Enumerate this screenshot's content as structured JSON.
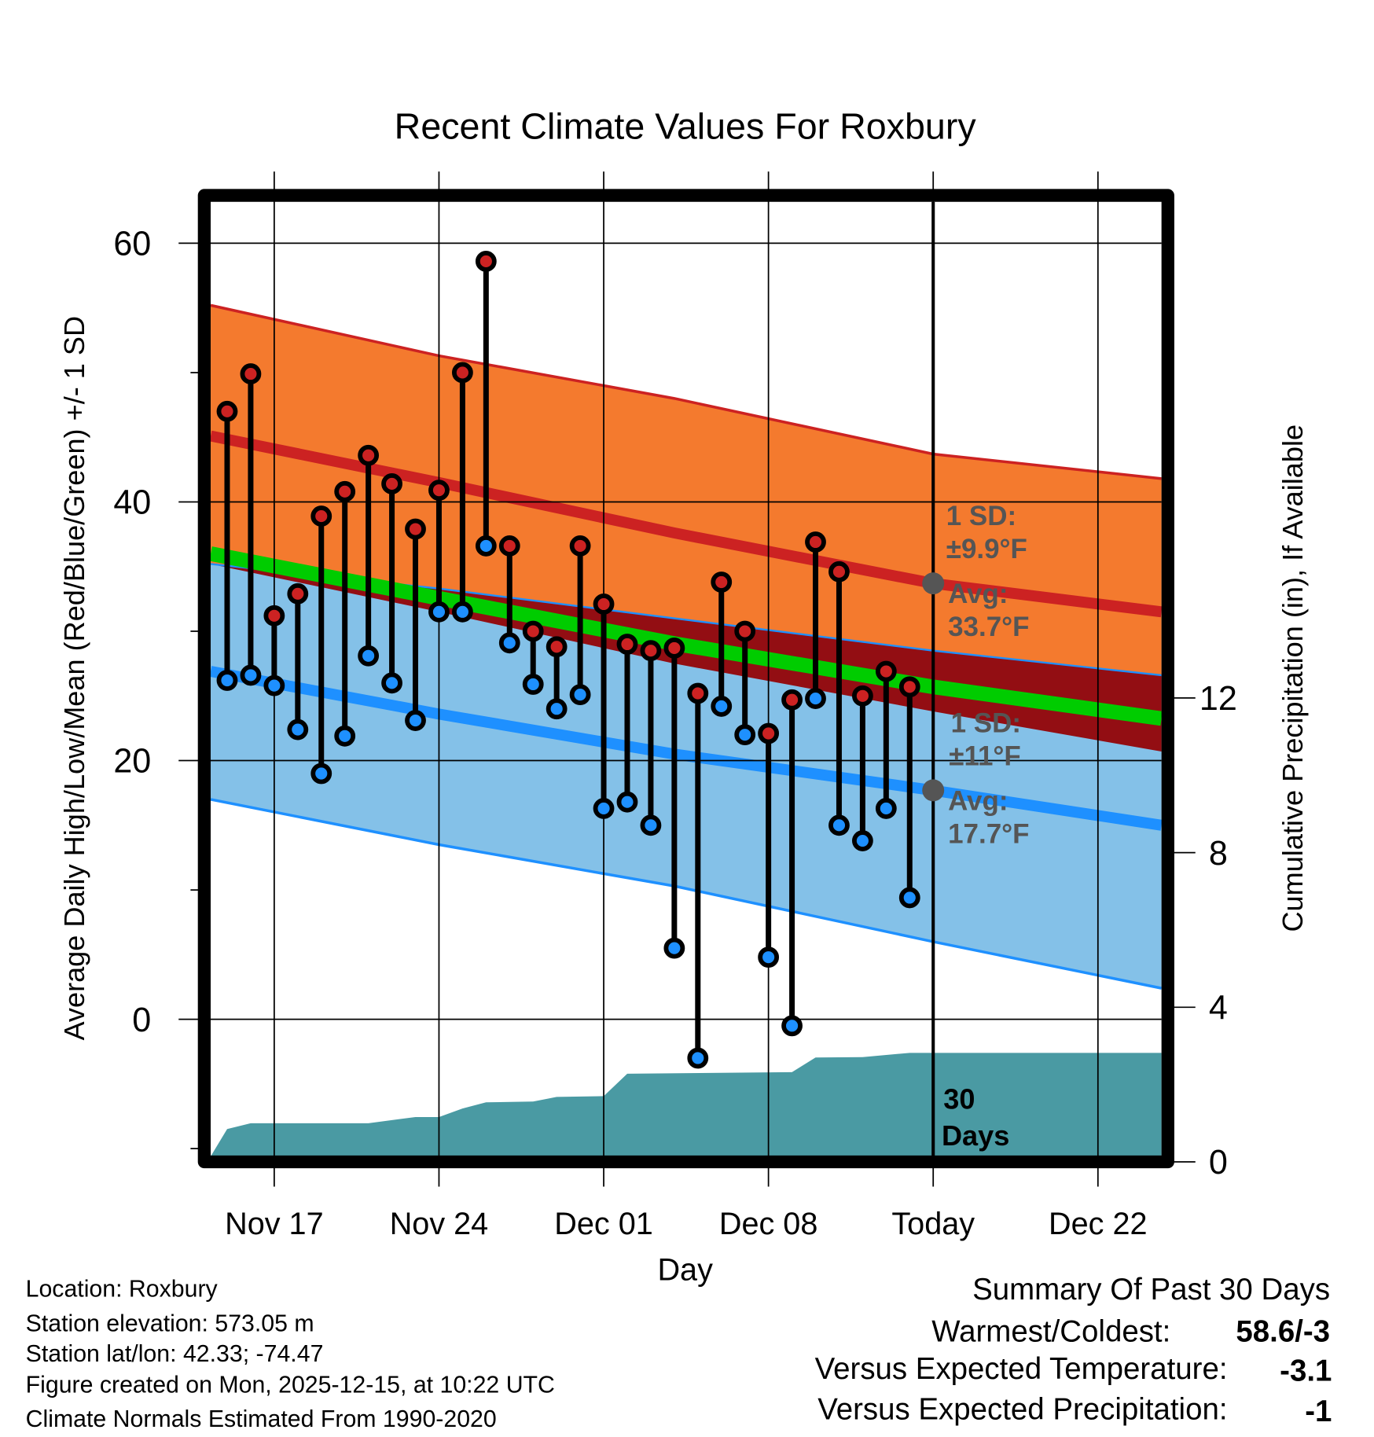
{
  "chart_data": {
    "type": "line",
    "title": "Recent Climate Values For Roxbury",
    "xlabel": "Day",
    "ylabel": "Average Daily High/Low/Mean (Red/Blue/Green) +/- 1 SD",
    "y2label": "Cumulative Precipitation (in), If Available",
    "ylim": [
      -10.6,
      63.2
    ],
    "y2lim": [
      0,
      17.5
    ],
    "xlim_days_from_nov17": [
      -2.7,
      37.7
    ],
    "x_ticks": [
      {
        "day": 0,
        "label": "Nov 17"
      },
      {
        "day": 7,
        "label": "Nov 24"
      },
      {
        "day": 14,
        "label": "Dec 01"
      },
      {
        "day": 21,
        "label": "Dec 08"
      },
      {
        "day": 28,
        "label": "Today"
      },
      {
        "day": 35,
        "label": "Dec 22"
      }
    ],
    "y_ticks": [
      0,
      20,
      40,
      60
    ],
    "y_minor_ticks": [
      -10,
      10,
      30,
      50
    ],
    "y2_ticks": [
      0,
      4,
      8,
      12
    ],
    "grid": true,
    "today_day": 28,
    "observed": {
      "days_from_nov17": [
        -2,
        -1,
        0,
        1,
        2,
        3,
        4,
        5,
        6,
        7,
        8,
        9,
        10,
        11,
        12,
        13,
        14,
        15,
        16,
        17,
        18,
        19,
        20,
        21,
        22,
        23,
        24,
        25,
        26,
        27
      ],
      "high": [
        47.0,
        49.9,
        31.2,
        32.9,
        38.9,
        40.8,
        43.6,
        41.4,
        37.9,
        40.9,
        50.0,
        58.6,
        36.6,
        30.0,
        28.8,
        36.6,
        32.1,
        29.0,
        28.5,
        28.7,
        25.2,
        33.8,
        30.0,
        22.1,
        24.7,
        36.9,
        34.6,
        25.0,
        26.9,
        25.7
      ],
      "low": [
        26.2,
        26.6,
        25.8,
        22.4,
        19.0,
        21.9,
        28.1,
        26.0,
        23.1,
        31.5,
        31.5,
        36.6,
        29.1,
        25.9,
        24.0,
        25.1,
        16.3,
        16.8,
        15.0,
        5.5,
        -3.0,
        24.2,
        22.0,
        4.8,
        -0.5,
        24.8,
        15.0,
        13.8,
        16.3,
        9.4
      ]
    },
    "normals": {
      "days_from_nov17": [
        -2.7,
        7,
        17,
        28,
        37.7
      ],
      "high_upper": [
        55.2,
        51.3,
        48.0,
        43.7,
        41.8
      ],
      "high_mean": [
        45.1,
        41.5,
        37.6,
        33.7,
        31.5
      ],
      "high_lower": [
        35.2,
        31.5,
        27.5,
        23.8,
        20.7
      ],
      "low_upper": [
        35.2,
        33.3,
        31.0,
        28.5,
        26.6
      ],
      "low_mean": [
        26.9,
        23.6,
        20.5,
        17.7,
        15.0
      ],
      "low_lower": [
        17.0,
        13.5,
        10.3,
        6.0,
        2.4
      ]
    },
    "precip": {
      "days_from_nov17": [
        -2.7,
        -2,
        -1,
        4,
        6,
        7,
        8,
        9,
        11,
        12,
        14,
        15,
        22,
        23,
        25,
        27,
        37.7
      ],
      "cumulative_in": [
        0,
        0.85,
        1.0,
        1.0,
        1.16,
        1.16,
        1.38,
        1.54,
        1.56,
        1.68,
        1.7,
        2.28,
        2.32,
        2.7,
        2.71,
        2.82,
        2.82
      ]
    },
    "annotations": {
      "high_sd_label": "1 SD:",
      "high_sd_value": "±9.9°F",
      "high_avg_label": "Avg:",
      "high_avg_value": "33.7°F",
      "high_avg": 33.7,
      "low_sd_label": "1 SD:",
      "low_sd_value": "±11°F",
      "low_avg_label": "Avg:",
      "low_avg_value": "17.7°F",
      "low_avg": 17.7,
      "period_line1": "30",
      "period_line2": "Days"
    },
    "colors": {
      "high_band": "#f47a2e",
      "high_line": "#cc2222",
      "overlap": "#930e13",
      "mean_line": "#00cc00",
      "low_band": "#84c1e8",
      "low_line": "#1e90ff",
      "precip": "#4a9aa3"
    }
  },
  "footer": {
    "location": "Location: Roxbury",
    "elevation": "Station elevation: 573.05 m",
    "latlon": "Station lat/lon: 42.33; -74.47",
    "created": "Figure created on Mon, 2025-12-15, at 10:22 UTC",
    "normals": "Climate Normals Estimated From 1990-2020"
  },
  "summary": {
    "title": "Summary Of Past 30 Days",
    "warmest_label": "Warmest/Coldest:",
    "warmest_value": "58.6/-3",
    "temp_label": "Versus Expected Temperature:",
    "temp_value": "-3.1",
    "temp_color": "#1e90ff",
    "precip_label": "Versus Expected Precipitation:",
    "precip_value": "-1",
    "precip_color": "#a0522d"
  }
}
